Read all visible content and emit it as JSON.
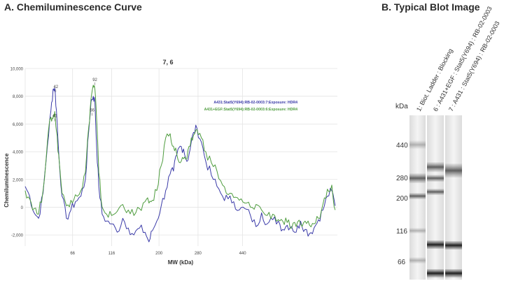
{
  "panels": {
    "a_title": "A. Chemiluminescence Curve",
    "b_title": "B.   Typical Blot Image"
  },
  "chart_data": {
    "type": "line",
    "title": "7, 6",
    "xlabel": "MW (kDa)",
    "ylabel": "Chemiluminescence",
    "xlim": [
      0,
      560
    ],
    "ylim": [
      -2800,
      10000
    ],
    "grid": true,
    "legend_position": "top-right",
    "y_ticks": [
      -2000,
      0,
      2000,
      4000,
      6000,
      8000,
      10000
    ],
    "y_tick_labels": [
      "-2,000",
      "0",
      "2,000",
      "4,000",
      "6,000",
      "8,000",
      "10,000"
    ],
    "x_ticks": [
      0,
      85,
      155,
      240,
      310,
      390
    ],
    "x_tick_labels": [
      "",
      "66",
      "116",
      "200",
      "280",
      "440"
    ],
    "annotations": [
      {
        "text": "42",
        "x": 55,
        "y": 8600
      },
      {
        "text": "41",
        "x": 53,
        "y": 6500
      },
      {
        "text": "92",
        "x": 125,
        "y": 9100
      },
      {
        "text": "66",
        "x": 120,
        "y": 6900
      }
    ],
    "series": [
      {
        "name": "A431:Stat5(Y694):RB-02-0003:7:Exposure: HDR4",
        "color": "#3a3aa8",
        "x": [
          0,
          8,
          16,
          24,
          32,
          40,
          46,
          50,
          53,
          56,
          60,
          66,
          74,
          82,
          90,
          100,
          108,
          114,
          118,
          122,
          125,
          128,
          132,
          138,
          146,
          155,
          165,
          175,
          185,
          195,
          205,
          215,
          222,
          228,
          236,
          244,
          252,
          260,
          266,
          272,
          278,
          284,
          290,
          296,
          302,
          308,
          316,
          324,
          334,
          344,
          354,
          364,
          374,
          384,
          394,
          404,
          414,
          424,
          434,
          444,
          454,
          462,
          470,
          478,
          486,
          494,
          502,
          510,
          518,
          526,
          534,
          542,
          550,
          556
        ],
        "y": [
          1500,
          800,
          -400,
          -800,
          1000,
          4500,
          6900,
          8500,
          8600,
          7000,
          4000,
          800,
          -800,
          -200,
          400,
          800,
          2000,
          5500,
          7600,
          8000,
          7600,
          4500,
          1500,
          -500,
          -1000,
          -1200,
          -1800,
          -800,
          -1500,
          -2000,
          -1500,
          -1800,
          -2500,
          -1700,
          -1000,
          100,
          1200,
          2400,
          2600,
          3800,
          4400,
          4200,
          3300,
          4200,
          5400,
          5700,
          4700,
          3300,
          2300,
          1500,
          800,
          600,
          400,
          -200,
          -100,
          -600,
          -1400,
          -400,
          -1200,
          -900,
          -1000,
          -1600,
          -1300,
          -1400,
          -1800,
          -1000,
          -1600,
          -1900,
          -1500,
          -900,
          -200,
          800,
          1200,
          100
        ]
      },
      {
        "name": "A431+EGF:Stat5(Y694):RB-02-0003:6:Exposure: HDR4",
        "color": "#4e9c3e",
        "x": [
          0,
          8,
          16,
          24,
          32,
          40,
          46,
          50,
          53,
          56,
          60,
          66,
          74,
          82,
          90,
          100,
          108,
          114,
          118,
          122,
          125,
          128,
          132,
          138,
          146,
          155,
          165,
          175,
          185,
          195,
          205,
          215,
          222,
          228,
          236,
          244,
          252,
          260,
          266,
          272,
          278,
          284,
          290,
          296,
          302,
          308,
          316,
          324,
          334,
          344,
          354,
          364,
          374,
          384,
          394,
          404,
          414,
          424,
          434,
          444,
          454,
          462,
          470,
          478,
          486,
          494,
          502,
          510,
          518,
          526,
          534,
          542,
          550,
          556
        ],
        "y": [
          1200,
          600,
          -100,
          -500,
          1200,
          4800,
          6500,
          6400,
          6900,
          5500,
          3800,
          1000,
          100,
          500,
          900,
          1200,
          2500,
          5800,
          7800,
          8800,
          8500,
          6500,
          2500,
          0,
          -500,
          -600,
          -300,
          200,
          -200,
          -600,
          -100,
          400,
          300,
          500,
          1200,
          3000,
          5000,
          5300,
          4400,
          3800,
          3200,
          3500,
          3500,
          4400,
          5200,
          5600,
          5000,
          4000,
          3200,
          2600,
          1600,
          900,
          700,
          500,
          300,
          0,
          200,
          -200,
          -600,
          -500,
          -900,
          -1000,
          -1100,
          -1500,
          -1400,
          -1200,
          -1000,
          -1300,
          -1200,
          -800,
          200,
          1300,
          1600,
          -200
        ]
      }
    ]
  },
  "blot": {
    "unit_label": "kDa",
    "markers": [
      "440",
      "280",
      "200",
      "116",
      "66"
    ],
    "lanes": [
      {
        "label": "1: Biot. Ladder : Blocking"
      },
      {
        "label": "6 : A431+EGF : Stat5(Y694) : RB-02-0003"
      },
      {
        "label": "7 : A431 : Stat5(Y694) : RB-02-0003"
      }
    ]
  }
}
